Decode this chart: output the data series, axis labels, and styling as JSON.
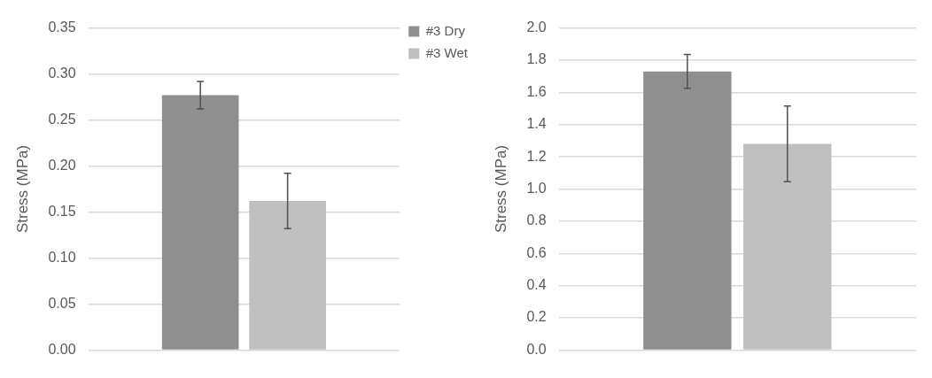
{
  "chart_data": [
    {
      "type": "bar",
      "ylabel": "Stress (MPa)",
      "categories": [
        null
      ],
      "series": [
        {
          "name": "#3 Dry",
          "color": "#8f8f8f",
          "values": [
            0.277
          ],
          "errors": [
            0.015
          ]
        },
        {
          "name": "#3 Wet",
          "color": "#bfbfbf",
          "values": [
            0.162
          ],
          "errors": [
            0.03
          ]
        }
      ],
      "ylim": [
        0,
        0.35
      ],
      "yticks": [
        {
          "value": 0,
          "label": "0.00"
        },
        0.05,
        {
          "value": 0.1,
          "label": "0.10"
        },
        0.15,
        {
          "value": 0.2,
          "label": "0.20"
        },
        0.25,
        {
          "value": 0.3,
          "label": "0.30"
        },
        0.35
      ],
      "grid": "y",
      "legend": "top right"
    },
    {
      "type": "bar",
      "ylabel": "Stress (MPa)",
      "categories": [
        null
      ],
      "series": [
        {
          "color": "#8f8f8f",
          "values": [
            1.73
          ],
          "errors": [
            0.105
          ]
        },
        {
          "color": "#bfbfbf",
          "values": [
            1.28
          ],
          "errors": [
            0.235
          ]
        }
      ],
      "ylim": [
        0,
        2.0
      ],
      "yticks": [
        {
          "value": 0,
          "label": "0.0"
        },
        0.2,
        0.4,
        0.6,
        0.8,
        {
          "value": 1,
          "label": "1.0"
        },
        1.2,
        1.4,
        1.6,
        1.8,
        {
          "value": 2,
          "label": "2.0"
        }
      ],
      "grid": "y"
    }
  ]
}
